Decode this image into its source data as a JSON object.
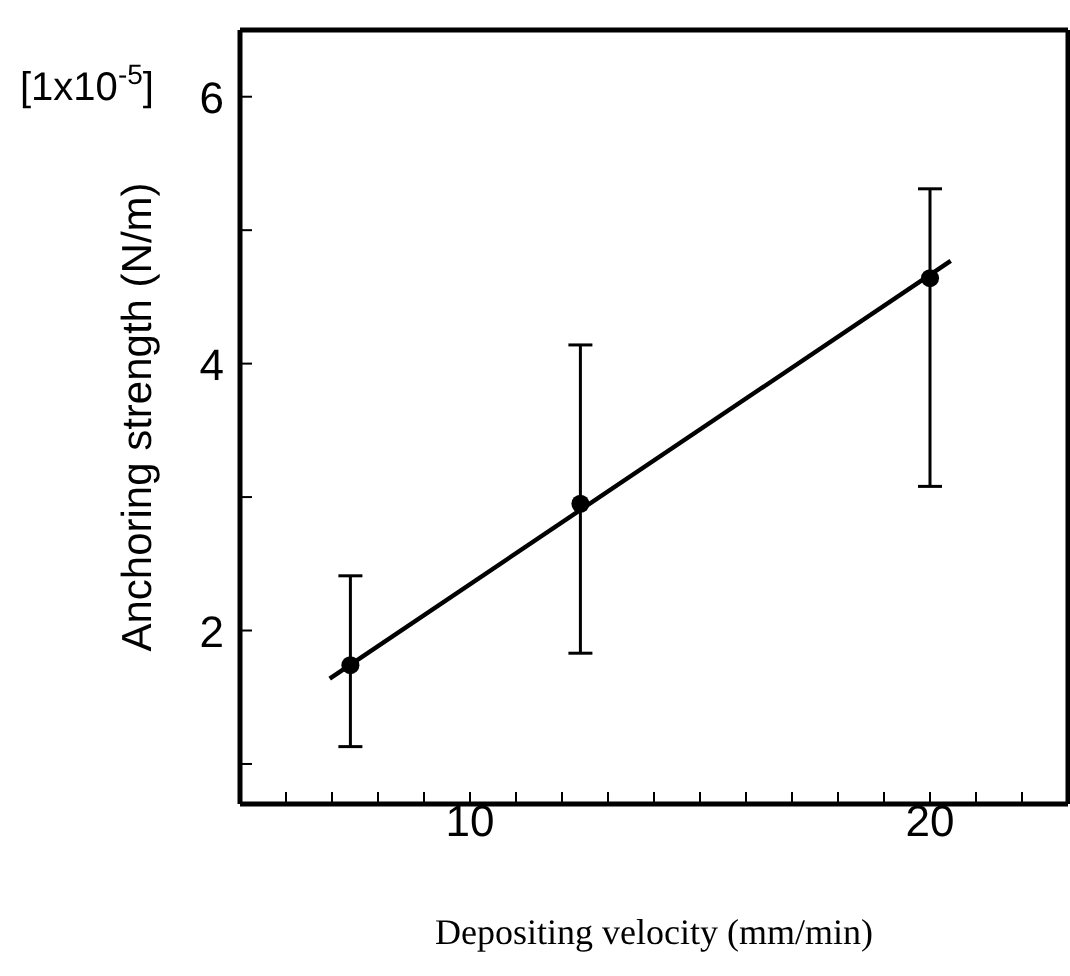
{
  "chart_data": {
    "type": "scatter",
    "xlabel": "Depositing velocity (mm/min)",
    "ylabel": "Anchoring strength (N/m)",
    "annotations": [
      "[1x10$^{-5}$]"
    ],
    "xlim": [
      5,
      23
    ],
    "xticks": [
      {
        "value": 5,
        "label": null
      },
      {
        "value": 6,
        "label": null
      },
      {
        "value": 7,
        "label": null
      },
      {
        "value": 8,
        "label": null
      },
      {
        "value": 9,
        "label": null
      },
      10,
      {
        "value": 11,
        "label": null
      },
      {
        "value": 12,
        "label": null
      },
      {
        "value": 13,
        "label": null
      },
      {
        "value": 14,
        "label": null
      },
      {
        "value": 15,
        "label": null
      },
      {
        "value": 16,
        "label": null
      },
      {
        "value": 17,
        "label": null
      },
      {
        "value": 18,
        "label": null
      },
      {
        "value": 19,
        "label": null
      },
      20,
      {
        "value": 21,
        "label": null
      },
      {
        "value": 22,
        "label": null
      }
    ],
    "ylim": [
      0.7,
      6.5
    ],
    "yticks": [
      {
        "value": 1,
        "label": null
      },
      2,
      {
        "value": 3,
        "label": null
      },
      4,
      {
        "value": 5,
        "label": null
      },
      6
    ],
    "marker": "circle",
    "grid": false,
    "legend": false,
    "series": [
      {
        "color": "#000000",
        "x": [
          7.4,
          12.4,
          20
        ],
        "values": [
          1.74,
          2.95,
          4.64
        ],
        "errors": [
          [
            1.13,
            2.41
          ],
          [
            1.83,
            4.14
          ],
          [
            3.08,
            5.31
          ]
        ]
      },
      {
        "type": "line",
        "color": "#000000",
        "x": [
          6.95,
          20.45
        ],
        "values": [
          1.64,
          4.77
        ],
        "line_style": "solid",
        "marker": "none"
      }
    ]
  }
}
